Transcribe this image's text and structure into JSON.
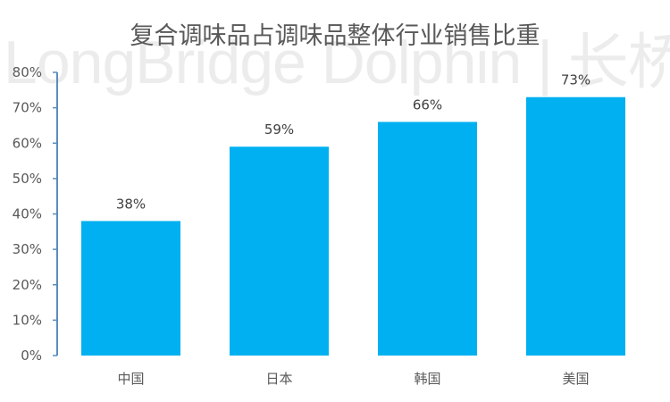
{
  "watermark": "LongBridge Dolphin | 长桥海豚投研",
  "chart_data": {
    "type": "bar",
    "title": "复合调味品占调味品整体行业销售比重",
    "categories": [
      "中国",
      "日本",
      "韩国",
      "美国"
    ],
    "values": [
      38,
      59,
      66,
      73
    ],
    "data_labels": [
      "38%",
      "59%",
      "66%",
      "73%"
    ],
    "yticks": [
      "0%",
      "10%",
      "20%",
      "30%",
      "40%",
      "50%",
      "60%",
      "70%",
      "80%"
    ],
    "ylim": [
      0,
      80
    ],
    "xlabel": "",
    "ylabel": "",
    "grid": false,
    "legend": "none",
    "bar_color": "#00B0F0",
    "axis_color": "#5B8DBE"
  }
}
